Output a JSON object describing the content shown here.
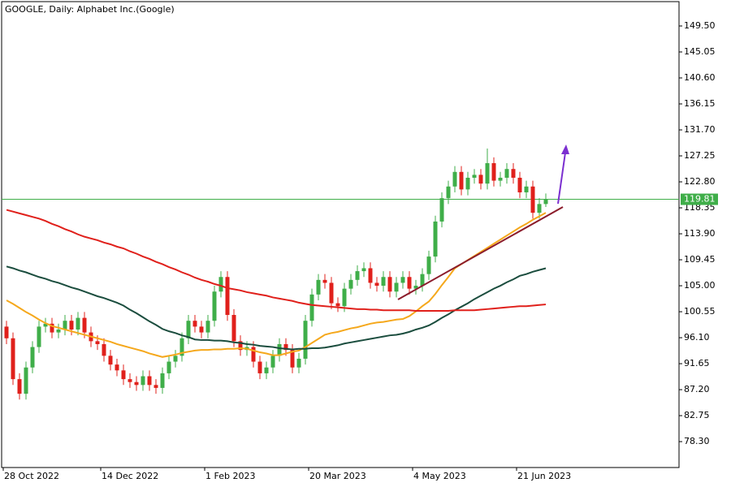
{
  "chart_data": {
    "type": "candlestick",
    "title": "GOOGLE, Daily:  Alphabet Inc.(Google)",
    "categories": [
      "28 Oct 2022",
      null,
      null,
      null,
      null,
      null,
      null,
      null,
      null,
      null,
      null,
      null,
      null,
      null,
      null,
      "14 Dec 2022",
      null,
      null,
      null,
      null,
      null,
      null,
      null,
      null,
      null,
      null,
      null,
      null,
      null,
      null,
      null,
      "1 Feb 2023",
      null,
      null,
      null,
      null,
      null,
      null,
      null,
      null,
      null,
      null,
      null,
      null,
      null,
      null,
      null,
      "20 Mar 2023",
      null,
      null,
      null,
      null,
      null,
      null,
      null,
      null,
      null,
      null,
      null,
      null,
      null,
      null,
      null,
      "4 May 2023",
      null,
      null,
      null,
      null,
      null,
      null,
      null,
      null,
      null,
      null,
      null,
      null,
      null,
      null,
      null,
      "21 Jun 2023",
      null,
      null,
      null,
      null
    ],
    "open": [
      98,
      96,
      89,
      86.5,
      91,
      94.5,
      98,
      98.5,
      97,
      97.5,
      99,
      97.5,
      99.5,
      97,
      95.5,
      95,
      93,
      91.5,
      90.5,
      89,
      88.5,
      88,
      89.5,
      88,
      87.5,
      90,
      92,
      93,
      96,
      99,
      98,
      97,
      99,
      104,
      106.5,
      100,
      95.5,
      94,
      94.5,
      92,
      90,
      91,
      93,
      95,
      94,
      91,
      92.5,
      99,
      103.5,
      106,
      105.5,
      102,
      101.5,
      104.5,
      106,
      107.5,
      108,
      105.5,
      105,
      106.5,
      104,
      105.5,
      106.5,
      104.5,
      105,
      107,
      110,
      116,
      120,
      122,
      124.5,
      121.5,
      123.5,
      124,
      122.5,
      126,
      123,
      123.5,
      125,
      123.5,
      121,
      122,
      117.5,
      119
    ],
    "high": [
      99,
      97,
      90,
      92,
      95.5,
      99,
      99.5,
      99.5,
      98.5,
      100,
      100,
      100.5,
      100.5,
      98,
      96.5,
      96,
      94,
      92.5,
      91.5,
      90,
      89.5,
      90.5,
      90.5,
      89,
      91,
      93,
      94,
      97,
      100,
      100,
      99,
      100,
      105,
      107.5,
      107.5,
      101,
      96.5,
      95.5,
      95.5,
      93,
      92,
      94,
      96,
      96,
      95,
      93.5,
      100,
      104.5,
      107,
      107,
      106.5,
      103,
      105.5,
      107,
      108.5,
      109,
      109,
      106.5,
      107.5,
      107.5,
      106.5,
      107.5,
      107.5,
      106,
      108,
      111,
      117,
      121,
      123,
      125.5,
      125.5,
      124.5,
      125,
      125,
      128.5,
      127,
      124.5,
      126,
      126,
      124.5,
      123,
      123,
      120,
      120.8
    ],
    "low": [
      95,
      88,
      85.5,
      85.5,
      90,
      93.5,
      97,
      96,
      96,
      96.5,
      96.5,
      96.5,
      96,
      94.5,
      94,
      92,
      90.5,
      89.5,
      88,
      87.5,
      87,
      87,
      87,
      86.5,
      86.5,
      89,
      91,
      92,
      95,
      97,
      96,
      96,
      98,
      103,
      99,
      94.5,
      93,
      93,
      91,
      89,
      89,
      90,
      92,
      93,
      90,
      90,
      91.5,
      98,
      102.5,
      104.5,
      101,
      100.5,
      100.5,
      103.5,
      105,
      106.5,
      104.5,
      104,
      104,
      103,
      103,
      104.5,
      103.5,
      103.5,
      104,
      106,
      109,
      115,
      119,
      121,
      120.5,
      120.5,
      122.5,
      121.5,
      121.5,
      122,
      122,
      122.5,
      122.5,
      120,
      120,
      116.5,
      116.5,
      118.5
    ],
    "close": [
      96,
      89,
      86.5,
      91,
      94.5,
      98,
      98.5,
      97,
      97.5,
      99,
      97.5,
      99.5,
      97,
      95.5,
      95,
      93,
      91.5,
      90.5,
      89,
      88.5,
      88,
      89.5,
      88,
      87.5,
      90,
      92,
      93,
      96,
      99,
      98,
      97,
      99,
      104,
      106.5,
      100,
      95.5,
      94,
      94.5,
      92,
      90,
      91,
      93,
      95,
      94,
      91,
      92.5,
      99,
      103.5,
      106,
      105.5,
      102,
      101.5,
      104.5,
      106,
      107.5,
      108,
      105.5,
      105,
      106.5,
      104,
      105.5,
      106.5,
      104.5,
      105,
      107,
      110,
      116,
      120,
      122,
      124.5,
      121.5,
      123.5,
      124,
      122.5,
      126,
      123,
      123.5,
      125,
      123.5,
      121,
      122,
      117.5,
      119,
      119.8
    ],
    "up_color": "#3fae49",
    "down_color": "#e0201b",
    "series": [
      {
        "color": "#f5a81c",
        "values": [
          102.5,
          101.9,
          101.2,
          100.5,
          99.9,
          99.2,
          98.6,
          98.1,
          97.8,
          97.5,
          97.2,
          96.9,
          96.6,
          96.3,
          96.0,
          95.7,
          95.4,
          95.0,
          94.7,
          94.4,
          94.1,
          93.8,
          93.4,
          93.1,
          92.8,
          93.0,
          93.2,
          93.5,
          93.7,
          93.9,
          94.0,
          94.0,
          94.1,
          94.1,
          94.2,
          94.2,
          94.3,
          94.2,
          93.9,
          93.6,
          93.4,
          93.1,
          93.1,
          93.4,
          93.7,
          93.9,
          94.5,
          95.2,
          95.9,
          96.6,
          96.9,
          97.1,
          97.4,
          97.7,
          97.9,
          98.2,
          98.5,
          98.7,
          98.8,
          99.0,
          99.2,
          99.3,
          99.8,
          100.6,
          101.5,
          102.3,
          103.6,
          105.1,
          106.5,
          108.0,
          108.7,
          109.4,
          110.1,
          110.8,
          111.5,
          112.2,
          112.9,
          113.6,
          114.3,
          115.0,
          115.6,
          116.3,
          116.9,
          117.5
        ]
      },
      {
        "color": "#1b4d3e",
        "values": [
          108.3,
          108.0,
          107.6,
          107.3,
          106.9,
          106.5,
          106.2,
          105.8,
          105.5,
          105.1,
          104.7,
          104.4,
          104.0,
          103.6,
          103.2,
          102.9,
          102.5,
          102.1,
          101.6,
          100.9,
          100.3,
          99.6,
          98.9,
          98.3,
          97.6,
          97.2,
          96.9,
          96.5,
          96.2,
          95.8,
          95.7,
          95.7,
          95.6,
          95.6,
          95.5,
          95.3,
          95.2,
          95.0,
          94.9,
          94.7,
          94.6,
          94.5,
          94.3,
          94.2,
          94.1,
          94.2,
          94.2,
          94.3,
          94.3,
          94.4,
          94.6,
          94.8,
          95.1,
          95.3,
          95.5,
          95.7,
          95.9,
          96.1,
          96.3,
          96.5,
          96.6,
          96.8,
          97.1,
          97.5,
          97.8,
          98.2,
          98.8,
          99.5,
          100.1,
          100.8,
          101.4,
          102.0,
          102.7,
          103.3,
          103.9,
          104.5,
          105.0,
          105.6,
          106.1,
          106.7,
          107.0,
          107.4,
          107.7,
          108.0
        ]
      },
      {
        "color": "#e0201b",
        "values": [
          118.0,
          117.7,
          117.4,
          117.1,
          116.8,
          116.5,
          116.1,
          115.6,
          115.2,
          114.7,
          114.3,
          113.8,
          113.4,
          113.1,
          112.8,
          112.4,
          112.1,
          111.7,
          111.4,
          110.9,
          110.5,
          110.0,
          109.6,
          109.1,
          108.7,
          108.2,
          107.8,
          107.3,
          106.9,
          106.4,
          106.0,
          105.7,
          105.3,
          105.0,
          104.6,
          104.4,
          104.2,
          103.9,
          103.7,
          103.5,
          103.3,
          103.0,
          102.8,
          102.6,
          102.4,
          102.1,
          101.9,
          101.7,
          101.6,
          101.5,
          101.4,
          101.3,
          101.2,
          101.1,
          101.0,
          101.0,
          100.9,
          100.9,
          100.8,
          100.8,
          100.8,
          100.8,
          100.8,
          100.7,
          100.7,
          100.7,
          100.7,
          100.7,
          100.7,
          100.8,
          100.8,
          100.8,
          100.8,
          100.9,
          101.0,
          101.1,
          101.2,
          101.3,
          101.4,
          101.5,
          101.5,
          101.6,
          101.7,
          101.8
        ]
      }
    ],
    "current_price": 119.81,
    "current_price_color": "#3fae49",
    "ylim": [
      74.0,
      153.95
    ],
    "yticks": [
      {
        "value": 149.5,
        "label": "149.50"
      },
      145.05,
      {
        "value": 140.6,
        "label": "140.60"
      },
      136.15,
      {
        "value": 131.7,
        "label": "131.70"
      },
      127.25,
      {
        "value": 122.8,
        "label": "122.80"
      },
      118.35,
      {
        "value": 113.9,
        "label": "113.90"
      },
      109.45,
      {
        "value": 105,
        "label": "105.00"
      },
      100.55,
      {
        "value": 96.1,
        "label": "96.10"
      },
      91.65,
      {
        "value": 87.2,
        "label": "87.20"
      },
      82.75,
      {
        "value": 78.3,
        "label": "78.30"
      }
    ]
  }
}
